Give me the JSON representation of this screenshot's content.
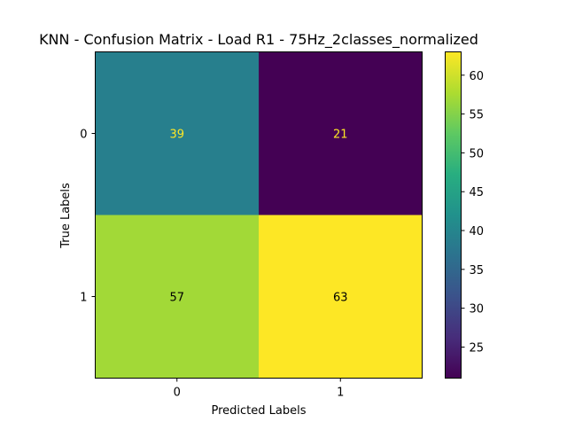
{
  "chart_data": {
    "type": "heatmap",
    "title": "KNN - Confusion Matrix - Load R1 - 75Hz_2classes_normalized",
    "xlabel": "Predicted Labels",
    "ylabel": "True Labels",
    "x_ticks": [
      "0",
      "1"
    ],
    "y_ticks": [
      "0",
      "1"
    ],
    "matrix": [
      [
        39,
        21
      ],
      [
        57,
        63
      ]
    ],
    "cell_text_colors": [
      [
        "#fde725",
        "#fde725"
      ],
      [
        "#000000",
        "#000000"
      ]
    ],
    "colorscale": "viridis",
    "colorbar": {
      "min": 21,
      "max": 63,
      "ticks": [
        25,
        30,
        35,
        40,
        45,
        50,
        55,
        60
      ]
    }
  }
}
